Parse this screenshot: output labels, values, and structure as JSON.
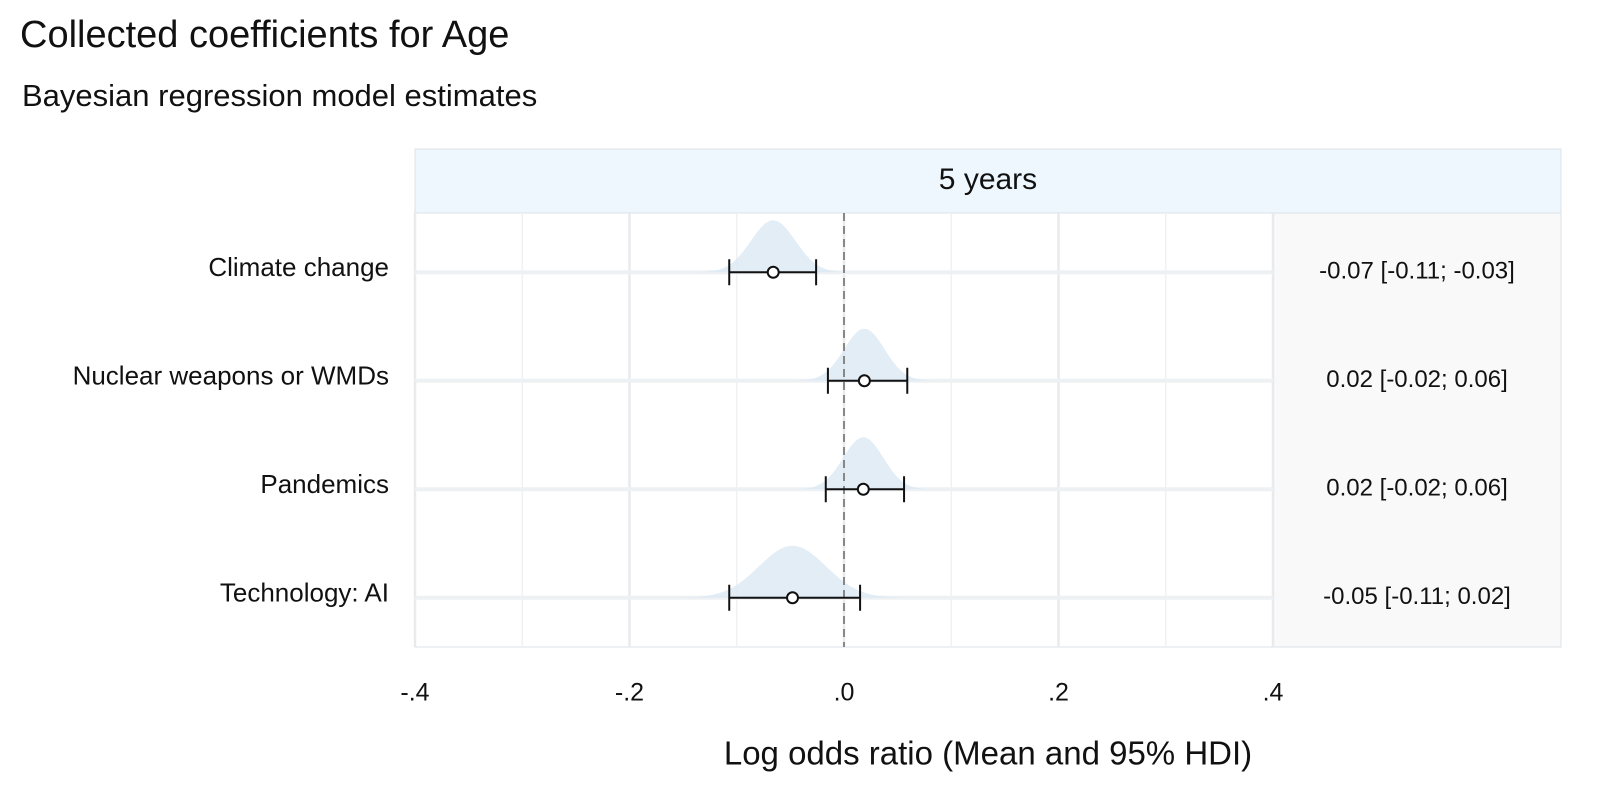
{
  "chart_data": {
    "type": "forest",
    "title": "Collected coefficients for Age",
    "subtitle": "Bayesian regression model estimates",
    "facet": "5 years",
    "xlabel": "Log odds ratio (Mean and 95% HDI)",
    "categories": [
      "Climate change",
      "Nuclear weapons or WMDs",
      "Pandemics",
      "Technology: AI"
    ],
    "values": [
      -0.066,
      0.019,
      0.018,
      -0.048
    ],
    "lower": [
      -0.107,
      -0.015,
      -0.017,
      -0.107
    ],
    "upper": [
      -0.026,
      0.059,
      0.056,
      0.015
    ],
    "value_labels": [
      "-0.07 [-0.11; -0.03]",
      "0.02 [-0.02; 0.06]",
      "0.02 [-0.02; 0.06]",
      "-0.05 [-0.11; 0.02]"
    ],
    "color": "#dbe9f4",
    "xlim": [
      -0.4,
      0.4
    ],
    "xticks": [
      {
        "value": -0.4,
        "label": "-.4"
      },
      {
        "value": -0.2,
        "label": "-.2"
      },
      {
        "value": 0,
        "label": ".0"
      },
      {
        "value": 0.2,
        "label": ".2"
      },
      {
        "value": 0.4,
        "label": ".4"
      }
    ],
    "minor_xticks": [
      -0.3,
      -0.1,
      0.1,
      0.3
    ],
    "refline": 0,
    "grid": true
  }
}
